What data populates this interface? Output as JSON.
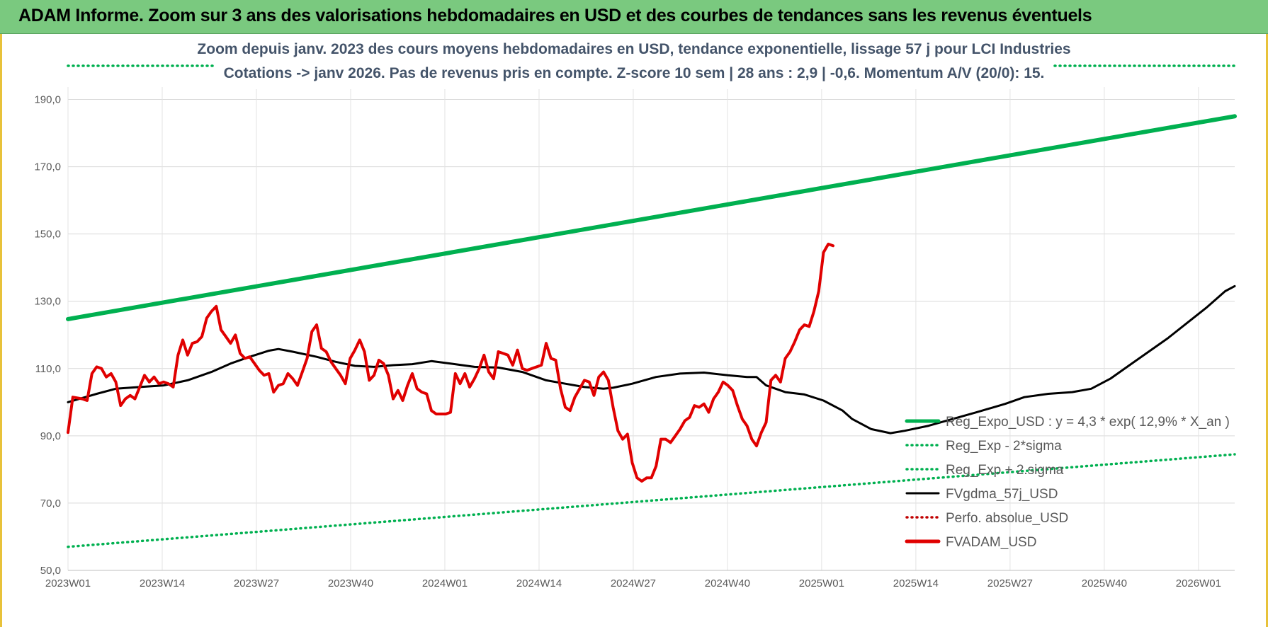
{
  "header": {
    "title": "ADAM Informe. Zoom sur 3 ans des valorisations hebdomadaires en USD et des courbes de tendances sans les revenus éventuels"
  },
  "colors": {
    "header_bg": "#7ac97f",
    "reg_expo": "#00b050",
    "fvgdma": "#000000",
    "perfo": "#c00000",
    "fvadam": "#e00000",
    "subtitle": "#44546a"
  },
  "chart_data": {
    "type": "line",
    "subtitle_lines": [
      "Zoom depuis janv. 2023 des cours moyens hebdomadaires en USD, tendance exponentielle, lissage 57 j pour LCI Industries",
      "Cotations -> janv 2026. Pas de revenus pris en compte. Z-score 10 sem | 28 ans : 2,9 | -0,6. Momentum A/V (20/0): 15."
    ],
    "ylim": [
      50,
      200
    ],
    "y_ticks": [
      "50,0",
      "70,0",
      "90,0",
      "110,0",
      "130,0",
      "150,0",
      "170,0",
      "190,0"
    ],
    "y_tick_values": [
      50,
      70,
      90,
      110,
      130,
      150,
      170,
      190
    ],
    "x_ticks": [
      "2023W01",
      "2023W14",
      "2023W27",
      "2023W40",
      "2024W01",
      "2024W14",
      "2024W27",
      "2024W40",
      "2025W01",
      "2025W14",
      "2025W27",
      "2025W40",
      "2026W01"
    ],
    "x_tick_weeks": [
      0,
      13,
      26,
      39,
      52,
      65,
      78,
      91,
      104,
      117,
      130,
      143,
      156
    ],
    "n_weeks": 161,
    "grid": true,
    "legend_position": "bottom-right",
    "series": [
      {
        "name": "Reg_Expo_USD : y = 4,3 * exp( 12,9% * X_an )",
        "style": "solid-thick",
        "color": "#00b050",
        "points": [
          [
            0,
            124.7
          ],
          [
            161,
            185.0
          ]
        ]
      },
      {
        "name": "Reg_Exp - 2*sigma",
        "style": "dotted",
        "color": "#00b050",
        "points": [
          [
            0,
            57.0
          ],
          [
            161,
            84.5
          ]
        ]
      },
      {
        "name": "Reg_Exp + 2.sigma",
        "style": "dotted",
        "color": "#00b050",
        "points": [
          [
            0,
            202.5
          ],
          [
            161,
            202.5
          ]
        ]
      },
      {
        "name": "FVgdma_57j_USD",
        "style": "solid",
        "color": "#000000",
        "points": [
          [
            0,
            100
          ],
          [
            6,
            102.5
          ],
          [
            10,
            104
          ],
          [
            15,
            104.5
          ],
          [
            20,
            105
          ],
          [
            25,
            106.5
          ],
          [
            30,
            109
          ],
          [
            34,
            111.5
          ],
          [
            38,
            113.5
          ],
          [
            42,
            115.3
          ],
          [
            44,
            115.8
          ],
          [
            47,
            115
          ],
          [
            52,
            113.5
          ],
          [
            56,
            112
          ],
          [
            60,
            110.8
          ],
          [
            64,
            110.5
          ],
          [
            68,
            111
          ],
          [
            72,
            111.3
          ],
          [
            76,
            112.2
          ],
          [
            80,
            111.5
          ],
          [
            85,
            110.5
          ],
          [
            90,
            110.3
          ],
          [
            95,
            109
          ],
          [
            100,
            106.5
          ],
          [
            104,
            105.5
          ],
          [
            108,
            104.5
          ],
          [
            112,
            104
          ],
          [
            114,
            104.3
          ],
          [
            118,
            105.5
          ],
          [
            123,
            107.5
          ],
          [
            128,
            108.5
          ],
          [
            133,
            108.8
          ],
          [
            138,
            108
          ],
          [
            142,
            107.5
          ],
          [
            144,
            107.5
          ],
          [
            146,
            105
          ],
          [
            150,
            103
          ],
          [
            154,
            102.3
          ],
          [
            158,
            100.5
          ],
          [
            162,
            97.5
          ],
          [
            164,
            95
          ],
          [
            168,
            92
          ],
          [
            172,
            90.8
          ],
          [
            175,
            91.5
          ],
          [
            180,
            93
          ],
          [
            185,
            95
          ],
          [
            190,
            97
          ],
          [
            196,
            99.5
          ],
          [
            200,
            101.5
          ],
          [
            205,
            102.5
          ],
          [
            210,
            103
          ],
          [
            214,
            104
          ],
          [
            218,
            107
          ],
          [
            222,
            111
          ],
          [
            226,
            115
          ],
          [
            230,
            119
          ],
          [
            234,
            123.5
          ],
          [
            238,
            128
          ],
          [
            242,
            133
          ],
          [
            244,
            134.5
          ]
        ]
      },
      {
        "name": "Perfo. absolue_USD",
        "style": "dotted",
        "color": "#c00000",
        "points": []
      },
      {
        "name": "FVADAM_USD",
        "style": "solid-thick",
        "color": "#e00000",
        "points": [
          [
            0,
            91
          ],
          [
            1,
            101.5
          ],
          [
            3,
            101
          ],
          [
            4,
            100.5
          ],
          [
            5,
            108.5
          ],
          [
            6,
            110.5
          ],
          [
            7,
            110
          ],
          [
            8,
            107.5
          ],
          [
            9,
            108.5
          ],
          [
            10,
            106
          ],
          [
            11,
            99
          ],
          [
            12,
            101
          ],
          [
            13,
            102
          ],
          [
            14,
            101
          ],
          [
            15,
            104.5
          ],
          [
            16,
            108
          ],
          [
            17,
            106
          ],
          [
            18,
            107.5
          ],
          [
            19,
            105.5
          ],
          [
            20,
            106
          ],
          [
            21,
            105.5
          ],
          [
            22,
            104.5
          ],
          [
            23,
            114
          ],
          [
            24,
            118.5
          ],
          [
            25,
            114
          ],
          [
            26,
            117.5
          ],
          [
            27,
            118
          ],
          [
            28,
            119.5
          ],
          [
            29,
            125
          ],
          [
            30,
            127
          ],
          [
            31,
            128.5
          ],
          [
            32,
            121.5
          ],
          [
            33,
            119.5
          ],
          [
            34,
            117.5
          ],
          [
            35,
            120
          ],
          [
            36,
            114.5
          ],
          [
            37,
            113
          ],
          [
            38,
            113.5
          ],
          [
            39,
            111.5
          ],
          [
            40,
            109.5
          ],
          [
            41,
            108
          ],
          [
            42,
            108.5
          ],
          [
            43,
            103
          ],
          [
            44,
            105
          ],
          [
            45,
            105.5
          ],
          [
            46,
            108.5
          ],
          [
            47,
            107
          ],
          [
            48,
            105
          ],
          [
            49,
            109
          ],
          [
            50,
            113
          ],
          [
            51,
            121
          ],
          [
            52,
            123
          ],
          [
            53,
            116
          ],
          [
            54,
            115
          ],
          [
            55,
            112
          ],
          [
            56,
            110
          ],
          [
            57,
            108
          ],
          [
            58,
            105.5
          ],
          [
            59,
            113
          ],
          [
            60,
            115.5
          ],
          [
            61,
            118.5
          ],
          [
            62,
            115
          ],
          [
            63,
            106.5
          ],
          [
            64,
            108
          ],
          [
            65,
            112.5
          ],
          [
            66,
            111.5
          ],
          [
            67,
            108
          ],
          [
            68,
            101
          ],
          [
            69,
            103.5
          ],
          [
            70,
            100.5
          ],
          [
            71,
            105
          ],
          [
            72,
            108.5
          ],
          [
            73,
            104
          ],
          [
            74,
            103
          ],
          [
            75,
            102.5
          ],
          [
            76,
            97.5
          ],
          [
            77,
            96.5
          ],
          [
            78,
            96.5
          ],
          [
            79,
            96.5
          ],
          [
            80,
            97
          ],
          [
            81,
            108.5
          ],
          [
            82,
            105.5
          ],
          [
            83,
            108.5
          ],
          [
            84,
            104.5
          ],
          [
            85,
            107
          ],
          [
            86,
            110
          ],
          [
            87,
            114
          ],
          [
            88,
            109
          ],
          [
            89,
            107
          ],
          [
            90,
            115
          ],
          [
            91,
            114.5
          ],
          [
            92,
            114
          ],
          [
            93,
            111
          ],
          [
            94,
            115.5
          ],
          [
            95,
            110
          ],
          [
            96,
            109.5
          ],
          [
            97,
            110
          ],
          [
            98,
            110.5
          ],
          [
            99,
            111
          ],
          [
            100,
            117.5
          ],
          [
            101,
            113
          ],
          [
            102,
            112.5
          ],
          [
            103,
            104
          ],
          [
            104,
            98.5
          ],
          [
            105,
            97.5
          ],
          [
            106,
            101.5
          ],
          [
            107,
            104
          ],
          [
            108,
            106.5
          ],
          [
            109,
            106
          ],
          [
            110,
            102
          ],
          [
            111,
            107.5
          ],
          [
            112,
            109
          ],
          [
            113,
            106.5
          ],
          [
            114,
            98.5
          ],
          [
            115,
            91.5
          ],
          [
            116,
            89
          ],
          [
            117,
            90.5
          ],
          [
            118,
            82
          ],
          [
            119,
            77.5
          ],
          [
            120,
            76.5
          ],
          [
            121,
            77.5
          ],
          [
            122,
            77.5
          ],
          [
            123,
            81
          ],
          [
            124,
            89
          ],
          [
            125,
            89
          ],
          [
            126,
            88
          ],
          [
            127,
            90
          ],
          [
            128,
            92
          ],
          [
            129,
            94.5
          ],
          [
            130,
            95.5
          ],
          [
            131,
            99
          ],
          [
            132,
            98.5
          ],
          [
            133,
            99.5
          ],
          [
            134,
            97
          ],
          [
            135,
            101
          ],
          [
            136,
            103
          ],
          [
            137,
            106
          ],
          [
            138,
            105
          ],
          [
            139,
            103.5
          ],
          [
            140,
            99
          ],
          [
            141,
            95
          ],
          [
            142,
            93
          ],
          [
            143,
            89
          ],
          [
            144,
            87
          ],
          [
            145,
            91
          ],
          [
            146,
            94
          ],
          [
            147,
            106.5
          ],
          [
            148,
            108
          ],
          [
            149,
            106
          ],
          [
            150,
            113
          ],
          [
            151,
            115
          ],
          [
            152,
            118
          ],
          [
            153,
            121.5
          ],
          [
            154,
            123
          ],
          [
            155,
            122.5
          ],
          [
            156,
            127
          ],
          [
            157,
            133
          ],
          [
            158,
            144.5
          ],
          [
            159,
            147
          ],
          [
            160,
            146.5
          ]
        ]
      }
    ]
  }
}
